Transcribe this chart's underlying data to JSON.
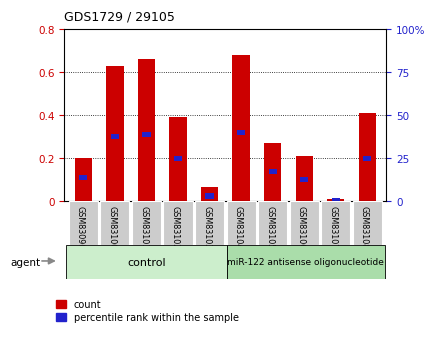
{
  "title": "GDS1729 / 29105",
  "categories": [
    "GSM83090",
    "GSM83100",
    "GSM83101",
    "GSM83102",
    "GSM83103",
    "GSM83104",
    "GSM83105",
    "GSM83106",
    "GSM83107",
    "GSM83108"
  ],
  "red_values": [
    0.2,
    0.63,
    0.66,
    0.39,
    0.065,
    0.68,
    0.27,
    0.21,
    0.01,
    0.41
  ],
  "blue_values": [
    0.11,
    0.3,
    0.31,
    0.2,
    0.025,
    0.32,
    0.14,
    0.1,
    0.005,
    0.2
  ],
  "left_ylim": [
    0,
    0.8
  ],
  "right_ylim": [
    0,
    100
  ],
  "left_yticks": [
    0,
    0.2,
    0.4,
    0.6,
    0.8
  ],
  "right_yticks": [
    0,
    25,
    50,
    75,
    100
  ],
  "left_yticklabels": [
    "0",
    "0.2",
    "0.4",
    "0.6",
    "0.8"
  ],
  "right_yticklabels": [
    "0",
    "25",
    "50",
    "75",
    "100%"
  ],
  "group1_label": "control",
  "group2_label": "miR-122 antisense oligonucleotide",
  "agent_label": "agent",
  "legend_red": "count",
  "legend_blue": "percentile rank within the sample",
  "bar_color": "#cc0000",
  "blue_color": "#2222cc",
  "group1_bg": "#cceecc",
  "group2_bg": "#aaddaa",
  "tick_label_bg": "#cccccc",
  "left_tick_color": "#cc0000",
  "right_tick_color": "#2222cc"
}
